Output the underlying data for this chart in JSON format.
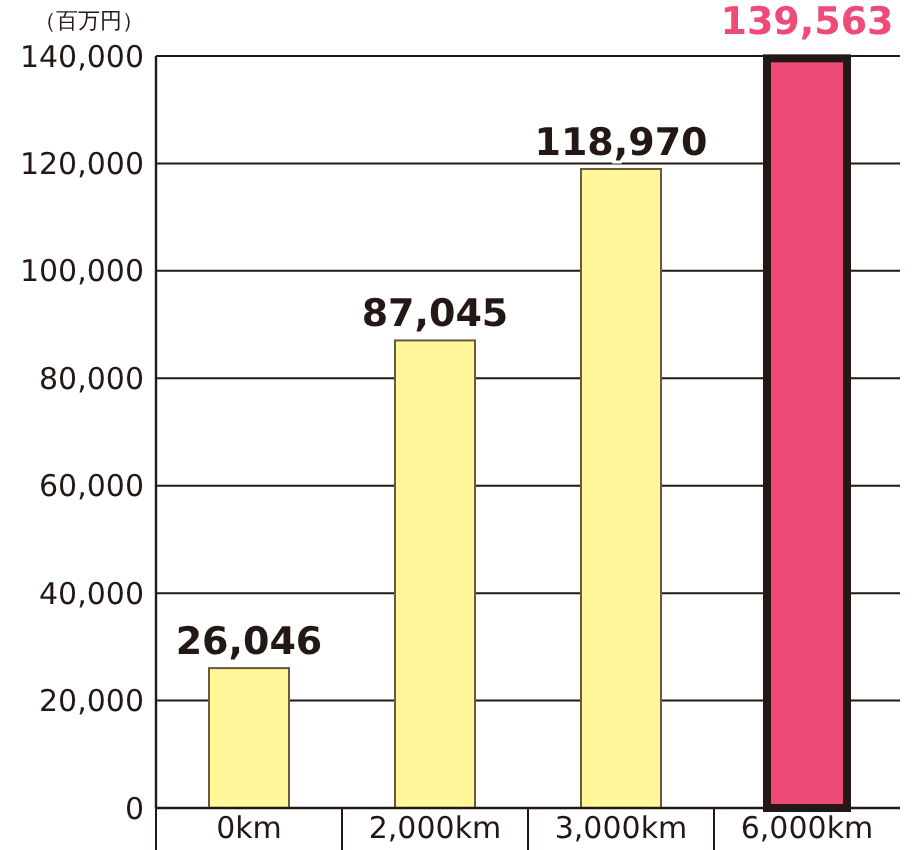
{
  "chart_data": {
    "type": "bar",
    "ylabel": "（百万円）",
    "categories": [
      "0km",
      "2,000km",
      "3,000km",
      "6,000km"
    ],
    "values": [
      26046,
      87045,
      118970,
      139563
    ],
    "colors": [
      "#fff799",
      "#fff799",
      "#fff799",
      "#ef4a78"
    ],
    "ylim": [
      0,
      140000
    ],
    "yticks": [
      {
        "value": 0,
        "label": "0"
      },
      {
        "value": 20000,
        "label": "20,000"
      },
      {
        "value": 40000,
        "label": "40,000"
      },
      {
        "value": 60000,
        "label": "60,000"
      },
      {
        "value": 80000,
        "label": "80,000"
      },
      {
        "value": 100000,
        "label": "100,000"
      },
      {
        "value": 120000,
        "label": "120,000"
      },
      {
        "value": 140000,
        "label": "140,000"
      }
    ],
    "grid": "y",
    "value_labels": [
      "26,046",
      "87,045",
      "118,970",
      "139,563"
    ]
  }
}
